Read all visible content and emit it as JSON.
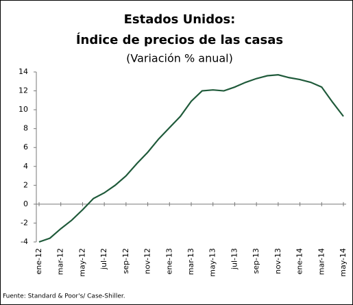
{
  "chart_data": {
    "type": "line",
    "title": "Estados Unidos:",
    "subtitle": "Índice de precios de las casas",
    "y_label": "(Variación % anual)",
    "source": "Fuente: Standard & Poor's/ Case-Shiller.",
    "categories": [
      "ene-12",
      null,
      "mar-12",
      null,
      "may-12",
      null,
      "jul-12",
      null,
      "sep-12",
      null,
      "nov-12",
      null,
      "ene-13",
      null,
      "mar-13",
      null,
      "may-13",
      null,
      "jul-13",
      null,
      "sep-13",
      null,
      "nov-13",
      null,
      "ene-14",
      null,
      "mar-14",
      null,
      "may-14"
    ],
    "series": [
      {
        "name": "Índice de precios de las casas",
        "color": "#1f5a3a",
        "values": [
          -4.0,
          -3.6,
          -2.6,
          -1.7,
          -0.6,
          0.6,
          1.2,
          2.0,
          3.0,
          4.3,
          5.5,
          6.9,
          8.1,
          9.3,
          10.9,
          12.0,
          12.1,
          12.0,
          12.4,
          12.9,
          13.3,
          13.6,
          13.7,
          13.4,
          13.2,
          12.9,
          12.4,
          10.8,
          9.3
        ]
      }
    ],
    "ylim": [
      -4,
      14
    ],
    "yticks": [
      -4,
      -2,
      0,
      2,
      4,
      6,
      8,
      10,
      12,
      14
    ]
  }
}
